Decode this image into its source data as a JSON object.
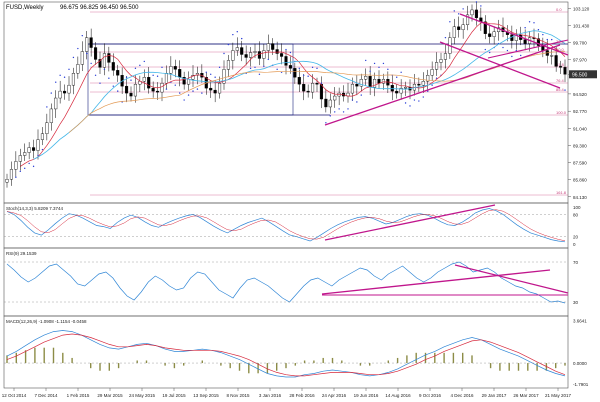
{
  "chart_data": {
    "type": "line",
    "title": "FUSD,Weekly",
    "price_readout": "96.675 96.825 96.450 96.500",
    "last_price": "96.500",
    "x_ticks": [
      "12 Oct 2014",
      "7 Dec 2014",
      "1 Feb 2015",
      "29 Mar 2015",
      "24 May 2015",
      "19 Jul 2015",
      "13 Sep 2015",
      "8 Nov 2015",
      "3 Jan 2016",
      "28 Feb 2016",
      "24 Apr 2016",
      "19 Jun 2016",
      "14 Aug 2016",
      "9 Oct 2016",
      "4 Dec 2016",
      "29 Jan 2017",
      "26 Mar 2017",
      "21 May 2017"
    ],
    "price_axis_ticks": [
      "103.120",
      "101.430",
      "99.700",
      "97.970",
      "96.500",
      "94.520",
      "92.770",
      "91.040",
      "89.300",
      "87.590",
      "85.860",
      "84.130"
    ],
    "fib_labels": [
      "0.0",
      "38.2",
      "50.0",
      "61.8",
      "76.4",
      "85.4",
      "100.0",
      "161.8"
    ],
    "price_close": [
      85.9,
      86.9,
      87.7,
      88.3,
      88.6,
      89.1,
      88.8,
      89.9,
      90.5,
      91.6,
      93.0,
      94.1,
      94.8,
      94.6,
      95.4,
      96.6,
      97.5,
      98.8,
      100.2,
      99.2,
      98.0,
      97.2,
      98.6,
      97.7,
      96.9,
      96.4,
      95.3,
      94.6,
      94.3,
      95.5,
      95.8,
      96.2,
      95.1,
      94.8,
      94.7,
      95.6,
      96.6,
      97.3,
      97.0,
      96.2,
      95.5,
      96.0,
      96.4,
      96.6,
      96.2,
      95.1,
      94.9,
      94.6,
      95.6,
      97.0,
      97.9,
      98.9,
      99.2,
      98.5,
      98.2,
      98.7,
      98.8,
      98.1,
      98.9,
      99.6,
      99.0,
      98.6,
      98.3,
      97.4,
      97.1,
      96.2,
      95.5,
      94.8,
      94.7,
      95.6,
      95.5,
      94.0,
      93.2,
      93.9,
      94.3,
      94.6,
      94.3,
      94.6,
      95.5,
      95.3,
      96.0,
      96.3,
      95.2,
      96.0,
      95.6,
      96.0,
      95.4,
      94.8,
      94.6,
      95.1,
      95.2,
      94.9,
      95.5,
      95.4,
      95.8,
      96.4,
      97.0,
      97.7,
      98.0,
      98.6,
      100.2,
      101.3,
      101.0,
      101.5,
      102.5,
      103.0,
      102.2,
      101.8,
      100.6,
      100.3,
      100.8,
      101.2,
      100.8,
      100.5,
      99.9,
      100.5,
      100.0,
      99.6,
      100.2,
      100.1,
      99.4,
      98.9,
      98.4,
      98.4,
      97.3,
      97.2,
      96.5
    ],
    "indicators": [
      {
        "label": "Stoch(14,3,3) 5.8209 7.3744",
        "axis_ticks": [
          "100",
          "80",
          "20",
          "0"
        ],
        "values": [
          88,
          80,
          64,
          45,
          30,
          24,
          38,
          55,
          70,
          82,
          78,
          70,
          60,
          50,
          47,
          42,
          58,
          70,
          78,
          72,
          60,
          50,
          45,
          55,
          63,
          70,
          76,
          80,
          72,
          60,
          48,
          38,
          30,
          40,
          50,
          58,
          64,
          70,
          60,
          48,
          36,
          25,
          20,
          14,
          8,
          18,
          30,
          42,
          52,
          60,
          66,
          72,
          74,
          70,
          62,
          54,
          58,
          66,
          74,
          80,
          82,
          78,
          70,
          60,
          52,
          50,
          58,
          70,
          84,
          92,
          96,
          90,
          80,
          66,
          52,
          40,
          30,
          24,
          18,
          12,
          8,
          6
        ]
      },
      {
        "label": "RSI(9) 29.1539",
        "axis_ticks": [
          "70",
          "30"
        ],
        "values": [
          68,
          62,
          55,
          50,
          54,
          60,
          66,
          68,
          62,
          56,
          48,
          46,
          52,
          58,
          60,
          54,
          44,
          36,
          32,
          40,
          50,
          56,
          52,
          46,
          42,
          44,
          54,
          60,
          58,
          50,
          42,
          38,
          34,
          44,
          52,
          54,
          50,
          46,
          40,
          34,
          30,
          38,
          46,
          52,
          54,
          50,
          46,
          52,
          56,
          60,
          64,
          62,
          56,
          52,
          58,
          62,
          66,
          60,
          54,
          50,
          54,
          60,
          64,
          68,
          70,
          66,
          60,
          62,
          64,
          60,
          54,
          50,
          46,
          44,
          40,
          38,
          34,
          30,
          31,
          29
        ]
      },
      {
        "label": "MACD(12,26,9) -1.0908 -1.1154 -0.0458",
        "axis_ticks": [
          "3.6641",
          "0.0000",
          "-1.7901"
        ],
        "macd": [
          0.6,
          1.0,
          1.5,
          2.0,
          2.4,
          2.7,
          2.8,
          2.7,
          2.4,
          2.0,
          1.6,
          1.3,
          1.2,
          1.4,
          1.6,
          1.7,
          1.5,
          1.2,
          1.0,
          1.0,
          1.1,
          1.2,
          1.1,
          0.9,
          0.6,
          0.3,
          -0.1,
          -0.5,
          -0.9,
          -1.1,
          -1.2,
          -1.2,
          -1.0,
          -0.9,
          -0.7,
          -0.6,
          -0.7,
          -0.8,
          -1.0,
          -1.1,
          -1.0,
          -0.8,
          -0.5,
          -0.1,
          0.3,
          0.7,
          1.0,
          1.4,
          1.7,
          2.0,
          2.2,
          2.0,
          1.6,
          1.2,
          0.9,
          0.6,
          0.2,
          -0.2,
          -0.6,
          -0.9,
          -1.1
        ],
        "signal": [
          0.3,
          0.6,
          1.0,
          1.4,
          1.8,
          2.1,
          2.4,
          2.5,
          2.4,
          2.2,
          1.9,
          1.6,
          1.4,
          1.4,
          1.5,
          1.6,
          1.5,
          1.3,
          1.2,
          1.1,
          1.1,
          1.1,
          1.1,
          1.0,
          0.8,
          0.6,
          0.3,
          -0.1,
          -0.5,
          -0.8,
          -1.0,
          -1.1,
          -1.1,
          -1.0,
          -0.9,
          -0.8,
          -0.8,
          -0.8,
          -0.9,
          -1.0,
          -1.0,
          -0.9,
          -0.7,
          -0.4,
          -0.1,
          0.3,
          0.6,
          1.0,
          1.3,
          1.6,
          1.9,
          2.0,
          1.8,
          1.5,
          1.2,
          0.9,
          0.5,
          0.1,
          -0.3,
          -0.7,
          -1.0
        ]
      }
    ]
  }
}
